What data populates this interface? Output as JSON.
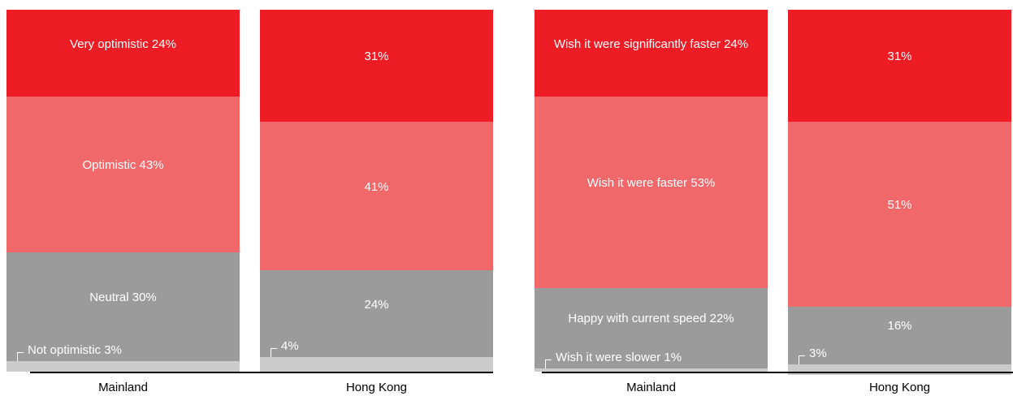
{
  "chart_data": [
    {
      "type": "bar",
      "stacked": true,
      "categories": [
        "Mainland",
        "Hong Kong"
      ],
      "series": [
        {
          "color": "#ee1c25",
          "values": [
            24,
            31
          ],
          "value_labels": [
            "Very optimistic 24%",
            "31%"
          ]
        },
        {
          "color": "#f0686a",
          "values": [
            43,
            41
          ],
          "value_labels": [
            "Optimistic 43%",
            "41%"
          ]
        },
        {
          "color": "#9b9b9b",
          "values": [
            30,
            24
          ],
          "value_labels": [
            "Neutral 30%",
            "24%"
          ]
        },
        {
          "color": "#cbcbcb",
          "values": [
            3,
            4
          ],
          "value_labels": [
            "Not optimistic 3%",
            "4%"
          ]
        }
      ]
    },
    {
      "type": "bar",
      "stacked": true,
      "categories": [
        "Mainland",
        "Hong Kong"
      ],
      "series": [
        {
          "color": "#ee1c25",
          "values": [
            24,
            31
          ],
          "value_labels": [
            "Wish it were significantly faster 24%",
            "31%"
          ]
        },
        {
          "color": "#f0686a",
          "values": [
            53,
            51
          ],
          "value_labels": [
            "Wish it were faster 53%",
            "51%"
          ]
        },
        {
          "color": "#9b9b9b",
          "values": [
            22,
            16
          ],
          "value_labels": [
            "Happy with current speed 22%",
            "16%"
          ]
        },
        {
          "color": "#cbcbcb",
          "values": [
            1,
            3
          ],
          "value_labels": [
            "Wish it were slower 1%",
            "3%"
          ]
        }
      ]
    }
  ]
}
